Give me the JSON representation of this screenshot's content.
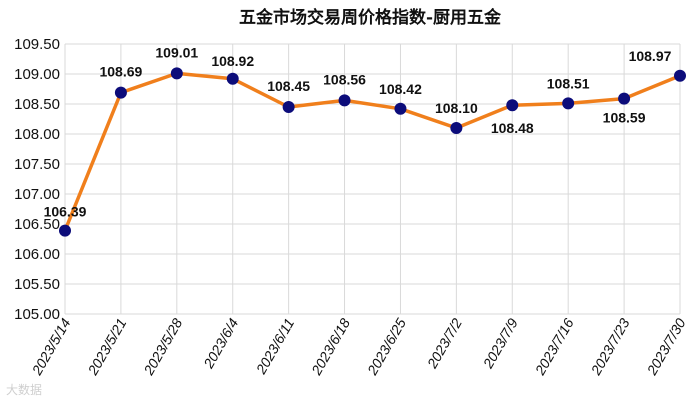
{
  "chart_data": {
    "type": "line",
    "title": "五金市场交易周价格指数-厨用五金",
    "categories": [
      "2023/5/14",
      "2023/5/21",
      "2023/5/28",
      "2023/6/4",
      "2023/6/11",
      "2023/6/18",
      "2023/6/25",
      "2023/7/2",
      "2023/7/9",
      "2023/7/16",
      "2023/7/23",
      "2023/7/30"
    ],
    "series": [
      {
        "values": [
          106.39,
          108.69,
          109.01,
          108.92,
          108.45,
          108.56,
          108.42,
          108.1,
          108.48,
          108.51,
          108.59,
          108.97
        ]
      }
    ],
    "data_labels": [
      "106.39",
      "108.69",
      "109.01",
      "108.92",
      "108.45",
      "108.56",
      "108.42",
      "108.10",
      "108.48",
      "108.51",
      "108.59",
      "108.97"
    ],
    "yticks": [
      "105.00",
      "105.50",
      "106.00",
      "106.50",
      "107.00",
      "107.50",
      "108.00",
      "108.50",
      "109.00",
      "109.50"
    ],
    "ylim": [
      105.0,
      109.5
    ],
    "grid": true,
    "legend": "none",
    "line_color": "#f07f1c",
    "marker_color": "#0c0c7a",
    "grid_color": "#d9d9d9"
  },
  "watermark": "大数据"
}
